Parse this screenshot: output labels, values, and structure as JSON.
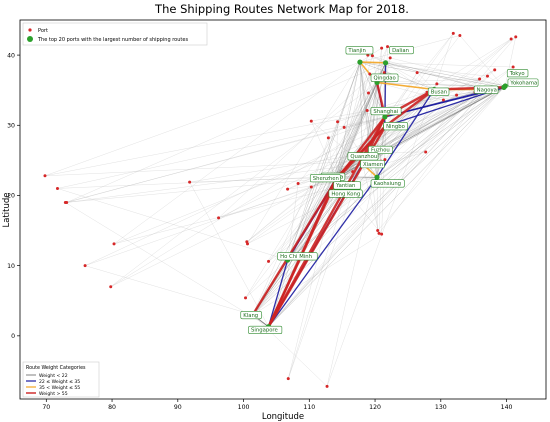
{
  "chart_data": {
    "type": "scatter",
    "title": "The Shipping Routes Network Map for 2018.",
    "xlabel": "Longitude",
    "ylabel": "Latitude",
    "xlim": [
      66,
      146
    ],
    "ylim": [
      -9,
      45
    ],
    "xticks": [
      70,
      80,
      90,
      100,
      110,
      120,
      130,
      140
    ],
    "yticks": [
      0,
      10,
      20,
      30,
      40
    ],
    "grid": false,
    "top_legend": {
      "placement": "top-left",
      "entries": [
        {
          "label": "Port",
          "marker": "small-red-dot"
        },
        {
          "label": "The top 20 ports with the largest number of shipping routes",
          "marker": "green-dot"
        }
      ]
    },
    "weight_legend": {
      "placement": "bottom-left",
      "title": "Route Weight Categories",
      "entries": [
        {
          "label": "Weight < 22",
          "color": "#808080"
        },
        {
          "label": "22 ≤ Weight ≤ 35",
          "color": "#1a1aa0"
        },
        {
          "label": "35 < Weight ≤ 55",
          "color": "#f5a623"
        },
        {
          "label": "Weight > 55",
          "color": "#cc2222"
        }
      ]
    },
    "colors": {
      "port": "#d62728",
      "top_port": "#2ca02c",
      "light_route": "#b0b0b0",
      "grey_route": "#707070",
      "blue_route": "#1a1aa0",
      "orange_route": "#f5a623",
      "red_route": "#cc2222"
    },
    "top_ports": [
      {
        "name": "Tianjin",
        "x": 117.7,
        "y": 39.0
      },
      {
        "name": "Dalian",
        "x": 121.6,
        "y": 38.9
      },
      {
        "name": "Qingdao",
        "x": 120.3,
        "y": 36.1
      },
      {
        "name": "Busan",
        "x": 129.0,
        "y": 35.1
      },
      {
        "name": "Tokyo",
        "x": 139.8,
        "y": 35.6
      },
      {
        "name": "Yokohama",
        "x": 139.6,
        "y": 35.4
      },
      {
        "name": "Nagoya",
        "x": 136.9,
        "y": 35.1
      },
      {
        "name": "Shanghai",
        "x": 121.5,
        "y": 31.2
      },
      {
        "name": "Ningbo",
        "x": 121.6,
        "y": 29.9
      },
      {
        "name": "Fuzhou",
        "x": 119.3,
        "y": 26.1
      },
      {
        "name": "Quanzhou",
        "x": 118.6,
        "y": 24.9
      },
      {
        "name": "Xiamen",
        "x": 118.1,
        "y": 24.5
      },
      {
        "name": "Nansha",
        "x": 113.6,
        "y": 22.7
      },
      {
        "name": "Shenzhen",
        "x": 114.1,
        "y": 22.5
      },
      {
        "name": "Yantian",
        "x": 114.3,
        "y": 22.6
      },
      {
        "name": "Kaohsiung",
        "x": 120.3,
        "y": 22.6
      },
      {
        "name": "Hong Kong",
        "x": 114.2,
        "y": 22.3
      },
      {
        "name": "Ho Chi Minh",
        "x": 106.7,
        "y": 10.8
      },
      {
        "name": "Klang",
        "x": 101.4,
        "y": 3.0
      },
      {
        "name": "Singapore",
        "x": 103.8,
        "y": 1.3
      }
    ],
    "other_ports": [
      {
        "x": 69.8,
        "y": 22.8
      },
      {
        "x": 71.7,
        "y": 21.0
      },
      {
        "x": 72.9,
        "y": 19.0
      },
      {
        "x": 73.1,
        "y": 19.0
      },
      {
        "x": 75.9,
        "y": 10.0
      },
      {
        "x": 80.3,
        "y": 13.1
      },
      {
        "x": 79.8,
        "y": 7.0
      },
      {
        "x": 91.8,
        "y": 21.9
      },
      {
        "x": 96.2,
        "y": 16.8
      },
      {
        "x": 100.5,
        "y": 13.4
      },
      {
        "x": 100.6,
        "y": 13.1
      },
      {
        "x": 100.3,
        "y": 5.4
      },
      {
        "x": 103.8,
        "y": 10.6
      },
      {
        "x": 106.8,
        "y": -6.1
      },
      {
        "x": 112.7,
        "y": -7.2
      },
      {
        "x": 106.7,
        "y": 20.9
      },
      {
        "x": 108.3,
        "y": 21.7
      },
      {
        "x": 110.3,
        "y": 21.2
      },
      {
        "x": 110.3,
        "y": 30.6
      },
      {
        "x": 114.3,
        "y": 30.5
      },
      {
        "x": 115.3,
        "y": 29.7
      },
      {
        "x": 112.9,
        "y": 28.2
      },
      {
        "x": 116.6,
        "y": 23.4
      },
      {
        "x": 120.6,
        "y": 14.6
      },
      {
        "x": 121.0,
        "y": 14.5
      },
      {
        "x": 120.4,
        "y": 15.0
      },
      {
        "x": 119.0,
        "y": 34.6
      },
      {
        "x": 119.2,
        "y": 37.3
      },
      {
        "x": 118.9,
        "y": 40.0
      },
      {
        "x": 119.6,
        "y": 39.9
      },
      {
        "x": 121.0,
        "y": 41.0
      },
      {
        "x": 121.9,
        "y": 41.2
      },
      {
        "x": 122.3,
        "y": 39.6
      },
      {
        "x": 121.4,
        "y": 37.5
      },
      {
        "x": 126.4,
        "y": 37.5
      },
      {
        "x": 129.4,
        "y": 35.9
      },
      {
        "x": 130.4,
        "y": 33.6
      },
      {
        "x": 135.2,
        "y": 34.7
      },
      {
        "x": 132.4,
        "y": 34.3
      },
      {
        "x": 131.9,
        "y": 43.1
      },
      {
        "x": 132.9,
        "y": 42.8
      },
      {
        "x": 140.7,
        "y": 42.3
      },
      {
        "x": 141.4,
        "y": 42.6
      },
      {
        "x": 141.0,
        "y": 38.3
      },
      {
        "x": 138.2,
        "y": 37.9
      },
      {
        "x": 137.1,
        "y": 37.0
      },
      {
        "x": 135.9,
        "y": 36.6
      },
      {
        "x": 127.7,
        "y": 26.2
      },
      {
        "x": 127.9,
        "y": 34.7
      },
      {
        "x": 121.5,
        "y": 25.1
      },
      {
        "x": 120.9,
        "y": 24.9
      },
      {
        "x": 113.5,
        "y": 22.2
      },
      {
        "x": 118.8,
        "y": 32.1
      }
    ],
    "routes": [
      {
        "from": "Shanghai",
        "to": "Singapore",
        "weight": 60
      },
      {
        "from": "Ningbo",
        "to": "Singapore",
        "weight": 58
      },
      {
        "from": "Hong Kong",
        "to": "Singapore",
        "weight": 60
      },
      {
        "from": "Shenzhen",
        "to": "Singapore",
        "weight": 57
      },
      {
        "from": "Yantian",
        "to": "Klang",
        "weight": 56
      },
      {
        "from": "Shanghai",
        "to": "Busan",
        "weight": 58
      },
      {
        "from": "Ningbo",
        "to": "Busan",
        "weight": 57
      },
      {
        "from": "Busan",
        "to": "Yokohama",
        "weight": 56
      },
      {
        "from": "Qingdao",
        "to": "Shanghai",
        "weight": 56
      },
      {
        "from": "Shanghai",
        "to": "Hong Kong",
        "weight": 59
      },
      {
        "from": "Xiamen",
        "to": "Shanghai",
        "weight": 56
      },
      {
        "from": "Ningbo",
        "to": "Hong Kong",
        "weight": 57
      },
      {
        "from": "Shenzhen",
        "to": "Ningbo",
        "weight": 56
      },
      {
        "from": "Tianjin",
        "to": "Dalian",
        "weight": 45
      },
      {
        "from": "Qingdao",
        "to": "Busan",
        "weight": 45
      },
      {
        "from": "Tianjin",
        "to": "Qingdao",
        "weight": 42
      },
      {
        "from": "Xiamen",
        "to": "Kaohsiung",
        "weight": 40
      },
      {
        "from": "Nagoya",
        "to": "Busan",
        "weight": 40
      },
      {
        "from": "Shanghai",
        "to": "Tokyo",
        "weight": 30
      },
      {
        "from": "Ningbo",
        "to": "Yokohama",
        "weight": 28
      },
      {
        "from": "Shanghai",
        "to": "Yokohama",
        "weight": 30
      },
      {
        "from": "Ho Chi Minh",
        "to": "Singapore",
        "weight": 28
      },
      {
        "from": "Kaohsiung",
        "to": "Singapore",
        "weight": 30
      },
      {
        "from": "Hong Kong",
        "to": "Ho Chi Minh",
        "weight": 26
      },
      {
        "from": "Shenzhen",
        "to": "Ho Chi Minh",
        "weight": 26
      },
      {
        "from": "Xiamen",
        "to": "Singapore",
        "weight": 26
      },
      {
        "from": "Busan",
        "to": "Kaohsiung",
        "weight": 28
      },
      {
        "from": "Dalian",
        "to": "Shanghai",
        "weight": 30
      },
      {
        "from": "Qingdao",
        "to": "Ningbo",
        "weight": 28
      },
      {
        "from": "Singapore",
        "to": "Klang",
        "weight": 18
      },
      {
        "from": "Klang",
        "to": "Ho Chi Minh",
        "weight": 15
      }
    ]
  }
}
